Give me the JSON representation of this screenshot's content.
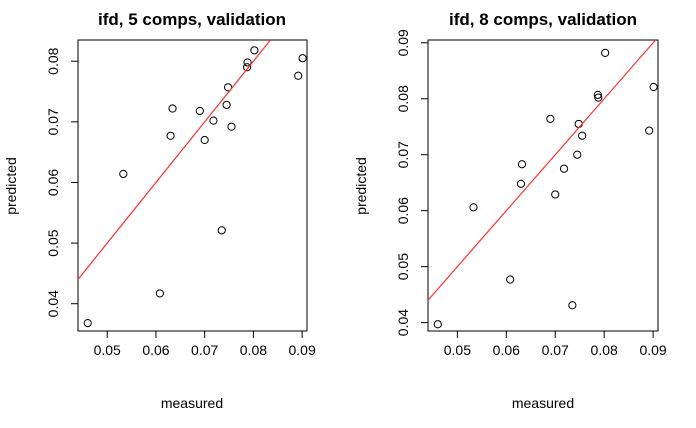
{
  "chart_data": [
    {
      "type": "scatter",
      "title": "ifd, 5 comps, validation",
      "xlabel": "measured",
      "ylabel": "predicted",
      "xlim": [
        0.044,
        0.091
      ],
      "ylim": [
        0.0355,
        0.0835
      ],
      "xticks": [
        "0.05",
        "0.06",
        "0.07",
        "0.08",
        "0.09"
      ],
      "xtick_values": [
        0.05,
        0.06,
        0.07,
        0.08,
        0.09
      ],
      "yticks": [
        "0.04",
        "0.05",
        "0.06",
        "0.07",
        "0.08"
      ],
      "ytick_values": [
        0.04,
        0.05,
        0.06,
        0.07,
        0.08
      ],
      "line": {
        "color": "#ff3030",
        "intercept": 0,
        "slope": 1
      },
      "x": [
        0.046,
        0.0533,
        0.0608,
        0.063,
        0.0634,
        0.069,
        0.07,
        0.0718,
        0.0735,
        0.0745,
        0.0748,
        0.0755,
        0.0787,
        0.0788,
        0.0802,
        0.0892,
        0.0901
      ],
      "y": [
        0.0368,
        0.0614,
        0.0417,
        0.0677,
        0.0722,
        0.0718,
        0.067,
        0.0702,
        0.0521,
        0.0728,
        0.0757,
        0.0692,
        0.079,
        0.0798,
        0.0818,
        0.0776,
        0.0805
      ]
    },
    {
      "type": "scatter",
      "title": "ifd, 8 comps, validation",
      "xlabel": "measured",
      "ylabel": "predicted",
      "xlim": [
        0.044,
        0.091
      ],
      "ylim": [
        0.0385,
        0.0905
      ],
      "xticks": [
        "0.05",
        "0.06",
        "0.07",
        "0.08",
        "0.09"
      ],
      "xtick_values": [
        0.05,
        0.06,
        0.07,
        0.08,
        0.09
      ],
      "yticks": [
        "0.04",
        "0.05",
        "0.06",
        "0.07",
        "0.08",
        "0.09"
      ],
      "ytick_values": [
        0.04,
        0.05,
        0.06,
        0.07,
        0.08,
        0.09
      ],
      "line": {
        "color": "#ff3030",
        "intercept": 0,
        "slope": 1
      },
      "x": [
        0.046,
        0.0533,
        0.0608,
        0.063,
        0.0632,
        0.069,
        0.07,
        0.0718,
        0.0735,
        0.0745,
        0.0748,
        0.0755,
        0.0787,
        0.0788,
        0.0802,
        0.0892,
        0.0901
      ],
      "y": [
        0.0397,
        0.0606,
        0.0477,
        0.0648,
        0.0683,
        0.0764,
        0.0629,
        0.0675,
        0.0431,
        0.07,
        0.0755,
        0.0734,
        0.0807,
        0.0802,
        0.0882,
        0.0743,
        0.0821
      ]
    }
  ]
}
